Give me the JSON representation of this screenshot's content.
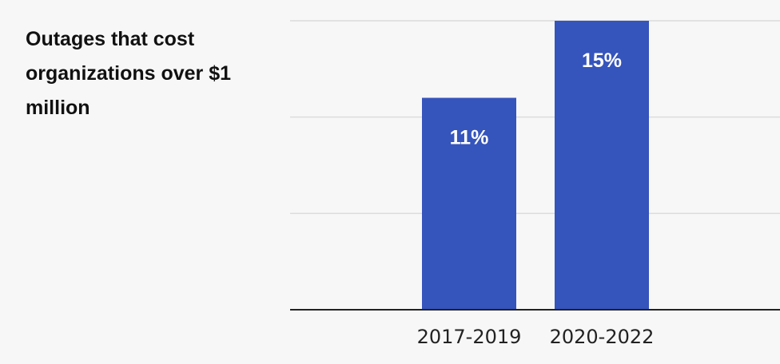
{
  "chart_data": {
    "type": "bar",
    "title": "Outages that cost organizations over $1 million",
    "categories": [
      "2017-2019",
      "2020-2022"
    ],
    "values": [
      11,
      15
    ],
    "data_labels": [
      "11%",
      "15%"
    ],
    "xlabel": "",
    "ylabel": "",
    "ylim": [
      0,
      15
    ],
    "grid": true,
    "legend": "none",
    "bar_color": "#3554bc"
  }
}
